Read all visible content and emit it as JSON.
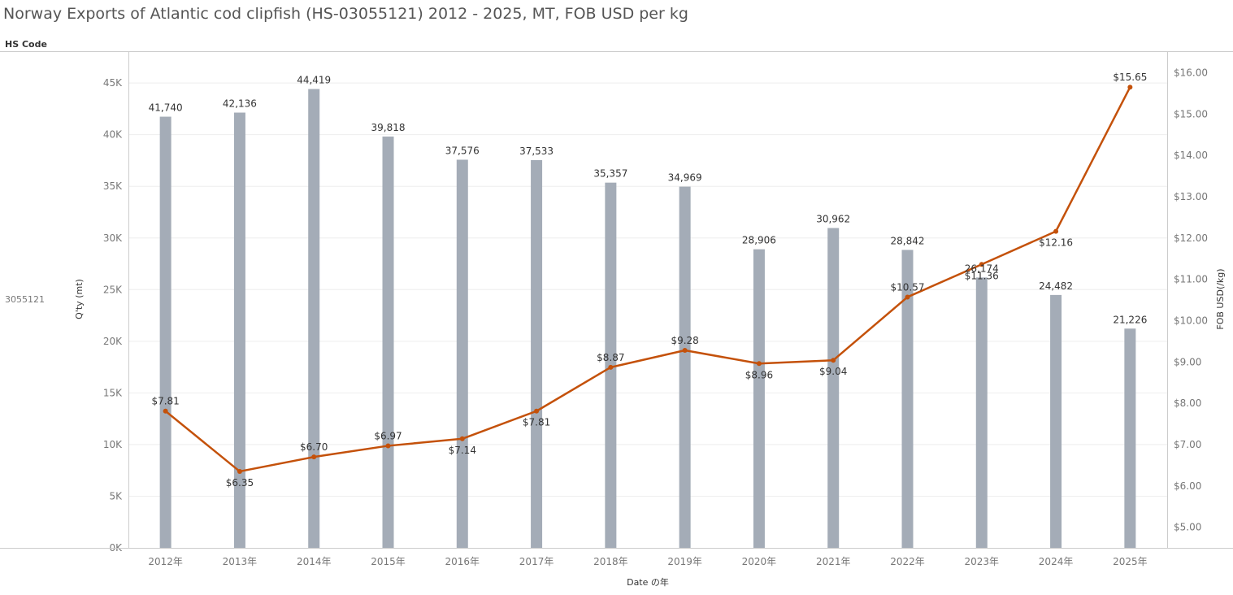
{
  "title": "Norway Exports of Atlantic cod clipfish (HS-03055121) 2012 - 2025, MT, FOB USD per kg",
  "row_header": "HS Code",
  "row_value": "3055121",
  "colors": {
    "bar": "#a4acb7",
    "line": "#c4510a",
    "grid": "#eeeeee",
    "axis": "#cccccc"
  },
  "chart_data": {
    "type": "bar",
    "categories": [
      "2012年",
      "2013年",
      "2014年",
      "2015年",
      "2016年",
      "2017年",
      "2018年",
      "2019年",
      "2020年",
      "2021年",
      "2022年",
      "2023年",
      "2024年",
      "2025年"
    ],
    "series": [
      {
        "name": "Q'ty (mt)",
        "type": "bar",
        "axis": "left",
        "values": [
          41740,
          42136,
          44419,
          39818,
          37576,
          37533,
          35357,
          34969,
          28906,
          30962,
          28842,
          26174,
          24482,
          21226
        ],
        "labels": [
          "41,740",
          "42,136",
          "44,419",
          "39,818",
          "37,576",
          "37,533",
          "35,357",
          "34,969",
          "28,906",
          "30,962",
          "28,842",
          "26,174",
          "24,482",
          "21,226"
        ]
      },
      {
        "name": "FOB USD(/kg)",
        "type": "line",
        "axis": "right",
        "values": [
          7.81,
          6.35,
          6.7,
          6.97,
          7.14,
          7.81,
          8.87,
          9.28,
          8.96,
          9.04,
          10.57,
          11.36,
          12.16,
          15.65
        ],
        "labels": [
          "$7.81",
          "$6.35",
          "$6.70",
          "$6.97",
          "$7.14",
          "$7.81",
          "$8.87",
          "$9.28",
          "$8.96",
          "$9.04",
          "$10.57",
          "$11.36",
          "$12.16",
          "$15.65"
        ],
        "label_position": [
          "above",
          "below",
          "above",
          "above",
          "below",
          "below",
          "above",
          "above",
          "below",
          "below",
          "above",
          "below",
          "below",
          "above"
        ]
      }
    ],
    "xlabel": "Date の年",
    "ylabel": "Q'ty (mt)",
    "ylabel_right": "FOB USD(/kg)",
    "ylim": [
      0,
      48000
    ],
    "ylim_right": [
      4.5,
      16.5
    ],
    "yticks": [
      "0K",
      "5K",
      "10K",
      "15K",
      "20K",
      "25K",
      "30K",
      "35K",
      "40K",
      "45K"
    ],
    "yticks_values": [
      0,
      5000,
      10000,
      15000,
      20000,
      25000,
      30000,
      35000,
      40000,
      45000
    ],
    "yticks_right": [
      "$5.00",
      "$6.00",
      "$7.00",
      "$8.00",
      "$9.00",
      "$10.00",
      "$11.00",
      "$12.00",
      "$13.00",
      "$14.00",
      "$15.00",
      "$16.00"
    ],
    "yticks_right_values": [
      5,
      6,
      7,
      8,
      9,
      10,
      11,
      12,
      13,
      14,
      15,
      16
    ],
    "grid": true
  }
}
